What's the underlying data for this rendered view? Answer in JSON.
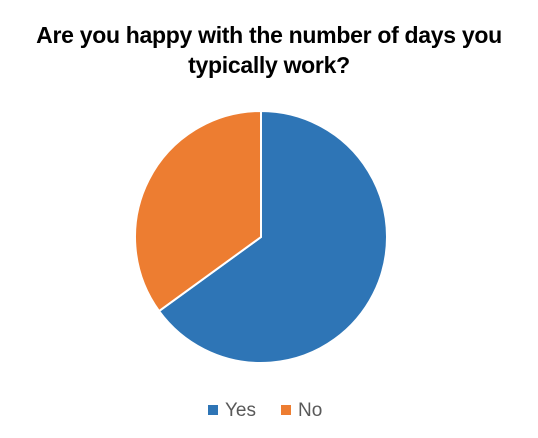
{
  "chart_data": {
    "type": "pie",
    "title": "Are you happy with the number of days you typically work?",
    "categories": [
      "Yes",
      "No"
    ],
    "values": [
      65,
      35
    ],
    "colors": [
      "#2e75b6",
      "#ed7d31"
    ],
    "legend": "bottom"
  }
}
